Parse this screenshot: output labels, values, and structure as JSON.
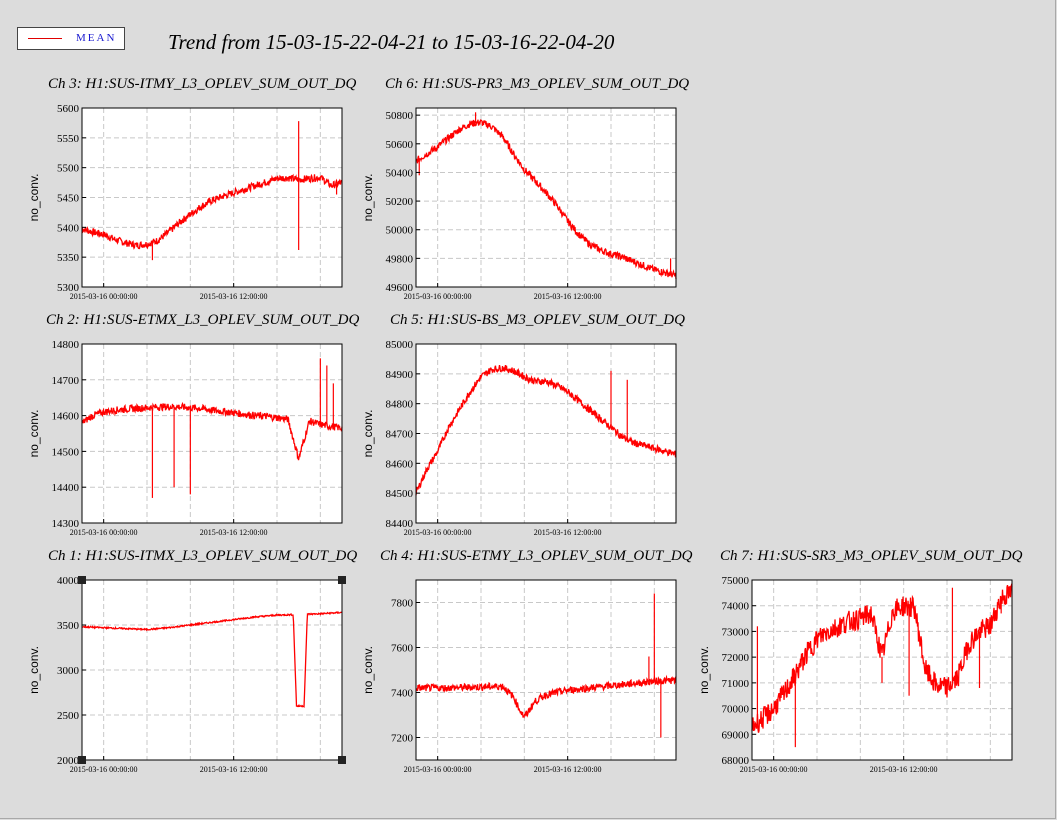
{
  "legend": {
    "label": "MEAN",
    "color": "#ff0000"
  },
  "title": "Trend from 15-03-15-22-04-21 to 15-03-16-22-04-20",
  "chart_data": [
    {
      "id": "ch3",
      "type": "line",
      "title": "Ch 3: H1:SUS-ITMY_L3_OPLEV_SUM_OUT_DQ",
      "ylabel": "no_conv.",
      "ylim": [
        5300,
        5600
      ],
      "yticks": [
        5300,
        5350,
        5400,
        5450,
        5500,
        5550,
        5600
      ],
      "xticks": [
        "2015-03-16 00:00:00",
        "2015-03-16 12:00:00"
      ],
      "xtick_hours": [
        2,
        14
      ],
      "xlim_hours": [
        0,
        24
      ],
      "grid": true,
      "series": [
        {
          "x_hours": [
            0,
            1,
            2,
            3,
            4,
            5,
            6,
            7,
            8,
            9,
            10,
            11,
            12,
            13,
            14,
            15,
            16,
            17,
            18,
            19,
            20,
            21,
            22,
            23,
            24
          ],
          "y": [
            5398,
            5392,
            5388,
            5380,
            5374,
            5370,
            5372,
            5378,
            5392,
            5408,
            5422,
            5435,
            5445,
            5452,
            5458,
            5464,
            5470,
            5476,
            5482,
            5483,
            5480,
            5482,
            5484,
            5470,
            5475
          ],
          "spikes": [
            [
              20,
              5578
            ],
            [
              20,
              5362
            ],
            [
              6.5,
              5345
            ],
            [
              23.5,
              5455
            ]
          ]
        }
      ]
    },
    {
      "id": "ch6",
      "type": "line",
      "title": "Ch 6: H1:SUS-PR3_M3_OPLEV_SUM_OUT_DQ",
      "ylabel": "no_conv.",
      "ylim": [
        49600,
        50850
      ],
      "yticks": [
        49600,
        49800,
        50000,
        50200,
        50400,
        50600,
        50800
      ],
      "xticks": [
        "2015-03-16 00:00:00",
        "2015-03-16 12:00:00"
      ],
      "xtick_hours": [
        2,
        14
      ],
      "xlim_hours": [
        0,
        24
      ],
      "grid": true,
      "series": [
        {
          "x_hours": [
            0,
            1,
            2,
            3,
            4,
            5,
            6,
            7,
            8,
            9,
            10,
            11,
            12,
            13,
            14,
            15,
            16,
            17,
            18,
            19,
            20,
            21,
            22,
            23,
            24
          ],
          "y": [
            50480,
            50530,
            50580,
            50640,
            50700,
            50740,
            50750,
            50720,
            50650,
            50530,
            50420,
            50340,
            50260,
            50170,
            50060,
            49970,
            49900,
            49860,
            49830,
            49810,
            49780,
            49750,
            49720,
            49700,
            49680
          ],
          "spikes": [
            [
              0.3,
              50380
            ],
            [
              5.5,
              50820
            ],
            [
              23.5,
              49800
            ]
          ]
        }
      ]
    },
    {
      "id": "ch2",
      "type": "line",
      "title": "Ch 2: H1:SUS-ETMX_L3_OPLEV_SUM_OUT_DQ",
      "ylabel": "no_conv.",
      "ylim": [
        14300,
        14800
      ],
      "yticks": [
        14300,
        14400,
        14500,
        14600,
        14700,
        14800
      ],
      "xticks": [
        "2015-03-16 00:00:00",
        "2015-03-16 12:00:00"
      ],
      "xtick_hours": [
        2,
        14
      ],
      "xlim_hours": [
        0,
        24
      ],
      "grid": true,
      "series": [
        {
          "x_hours": [
            0,
            1,
            2,
            3,
            4,
            5,
            6,
            7,
            8,
            9,
            10,
            11,
            12,
            13,
            14,
            15,
            16,
            17,
            18,
            19,
            20,
            21,
            22,
            23,
            24
          ],
          "y": [
            14580,
            14600,
            14610,
            14615,
            14618,
            14620,
            14622,
            14624,
            14625,
            14624,
            14622,
            14620,
            14615,
            14612,
            14608,
            14604,
            14600,
            14598,
            14594,
            14590,
            14480,
            14585,
            14575,
            14570,
            14565
          ],
          "spikes": [
            [
              6.5,
              14370
            ],
            [
              8.5,
              14400
            ],
            [
              10,
              14380
            ],
            [
              22,
              14760
            ],
            [
              22.6,
              14740
            ],
            [
              23.2,
              14690
            ]
          ]
        }
      ]
    },
    {
      "id": "ch5",
      "type": "line",
      "title": "Ch 5: H1:SUS-BS_M3_OPLEV_SUM_OUT_DQ",
      "ylabel": "no_conv.",
      "ylim": [
        84400,
        85000
      ],
      "yticks": [
        84400,
        84500,
        84600,
        84700,
        84800,
        84900,
        85000
      ],
      "xticks": [
        "2015-03-16 00:00:00",
        "2015-03-16 12:00:00"
      ],
      "xtick_hours": [
        2,
        14
      ],
      "xlim_hours": [
        0,
        24
      ],
      "grid": true,
      "series": [
        {
          "x_hours": [
            0,
            1,
            2,
            3,
            4,
            5,
            6,
            7,
            8,
            9,
            10,
            11,
            12,
            13,
            14,
            15,
            16,
            17,
            18,
            19,
            20,
            21,
            22,
            23,
            24
          ],
          "y": [
            84500,
            84580,
            84640,
            84720,
            84780,
            84840,
            84890,
            84915,
            84920,
            84910,
            84890,
            84875,
            84875,
            84860,
            84840,
            84810,
            84780,
            84750,
            84720,
            84690,
            84670,
            84660,
            84650,
            84640,
            84630
          ],
          "spikes": [
            [
              18,
              84910
            ],
            [
              19.5,
              84880
            ]
          ]
        }
      ]
    },
    {
      "id": "ch1",
      "type": "line",
      "title": "Ch 1: H1:SUS-ITMX_L3_OPLEV_SUM_OUT_DQ",
      "ylabel": "no_conv.",
      "ylim": [
        2000,
        4000
      ],
      "yticks": [
        2000,
        2500,
        3000,
        3500,
        4000
      ],
      "xticks": [
        "2015-03-16 00:00:00",
        "2015-03-16 12:00:00"
      ],
      "xtick_hours": [
        2,
        14
      ],
      "xlim_hours": [
        0,
        24
      ],
      "grid": true,
      "series": [
        {
          "x_hours": [
            0,
            2,
            4,
            6,
            8,
            10,
            12,
            14,
            16,
            18,
            19.5,
            19.8,
            20.5,
            20.8,
            22,
            24
          ],
          "y": [
            3480,
            3470,
            3460,
            3450,
            3470,
            3500,
            3530,
            3560,
            3590,
            3610,
            3615,
            2600,
            2600,
            3620,
            3625,
            3640
          ],
          "spikes": []
        }
      ]
    },
    {
      "id": "ch4",
      "type": "line",
      "title": "Ch 4: H1:SUS-ETMY_L3_OPLEV_SUM_OUT_DQ",
      "ylabel": "no_conv.",
      "ylim": [
        7100,
        7900
      ],
      "yticks": [
        7200,
        7400,
        7600,
        7800
      ],
      "xticks": [
        "2015-03-16 00:00:00",
        "2015-03-16 12:00:00"
      ],
      "xtick_hours": [
        2,
        14
      ],
      "xlim_hours": [
        0,
        24
      ],
      "grid": true,
      "series": [
        {
          "x_hours": [
            0,
            2,
            4,
            6,
            8,
            9,
            9.5,
            10,
            11,
            12,
            13,
            14,
            16,
            18,
            20,
            22,
            24
          ],
          "y": [
            7420,
            7420,
            7422,
            7425,
            7428,
            7380,
            7330,
            7290,
            7360,
            7390,
            7400,
            7410,
            7420,
            7430,
            7440,
            7450,
            7455
          ],
          "spikes": [
            [
              22,
              7840
            ],
            [
              22.6,
              7200
            ],
            [
              21.5,
              7560
            ]
          ]
        }
      ]
    },
    {
      "id": "ch7",
      "type": "line",
      "title": "Ch 7: H1:SUS-SR3_M3_OPLEV_SUM_OUT_DQ",
      "ylabel": "no_conv.",
      "ylim": [
        68000,
        75000
      ],
      "yticks": [
        68000,
        69000,
        70000,
        71000,
        72000,
        73000,
        74000,
        75000
      ],
      "xticks": [
        "2015-03-16 00:00:00",
        "2015-03-16 12:00:00"
      ],
      "xtick_hours": [
        2,
        14
      ],
      "xlim_hours": [
        0,
        24
      ],
      "grid": true,
      "series": [
        {
          "x_hours": [
            0,
            1,
            2,
            3,
            4,
            5,
            6,
            7,
            8,
            9,
            10,
            11,
            12,
            13,
            14,
            15,
            16,
            17,
            18,
            19,
            20,
            21,
            22,
            23,
            24
          ],
          "y": [
            69300,
            69600,
            70000,
            70600,
            71300,
            72100,
            72700,
            73000,
            73200,
            73400,
            73500,
            73700,
            72000,
            73800,
            74000,
            73900,
            71500,
            70900,
            70800,
            71200,
            72500,
            73000,
            73200,
            74300,
            74500
          ],
          "spikes": [
            [
              0.5,
              73200
            ],
            [
              4,
              68500
            ],
            [
              12,
              71000
            ],
            [
              14.5,
              70500
            ],
            [
              18.5,
              74700
            ],
            [
              21,
              70800
            ],
            [
              23,
              73700
            ]
          ]
        }
      ]
    }
  ]
}
